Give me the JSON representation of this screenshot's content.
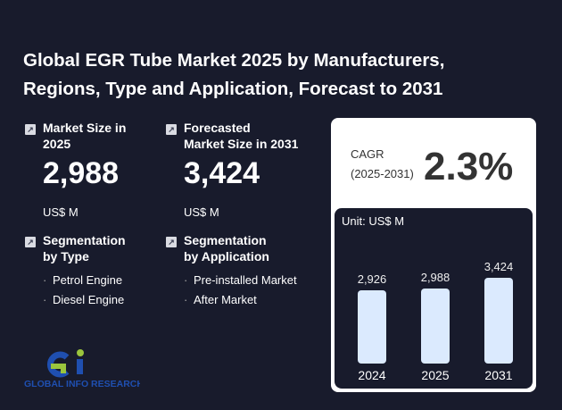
{
  "title": "Global EGR Tube Market 2025 by Manufacturers, Regions, Type and Application, Forecast to 2031",
  "market_size": {
    "label": "Market Size in 2025",
    "value": "2,988",
    "unit": "US$ M"
  },
  "forecast": {
    "label_1": "Forecasted",
    "label_2": "Market Size in 2031",
    "value": "3,424",
    "unit": "US$ M"
  },
  "seg_type": {
    "label_1": "Segmentation",
    "label_2": "by Type",
    "items": [
      "Petrol Engine",
      "Diesel Engine"
    ]
  },
  "seg_app": {
    "label_1": "Segmentation",
    "label_2": "by Application",
    "items": [
      "Pre-installed Market",
      "After Market"
    ]
  },
  "cagr": {
    "label": "CAGR",
    "period": "(2025-2031)",
    "value": "2.3%"
  },
  "logo": {
    "text": "GLOBAL INFO RESEARCH"
  },
  "chart_data": {
    "type": "bar",
    "title": "Unit: US$ M",
    "categories": [
      "2024",
      "2025",
      "2031"
    ],
    "values": [
      2926,
      2988,
      3424
    ],
    "value_labels": [
      "2,926",
      "2,988",
      "3,424"
    ],
    "ylim": [
      0,
      3424
    ]
  }
}
